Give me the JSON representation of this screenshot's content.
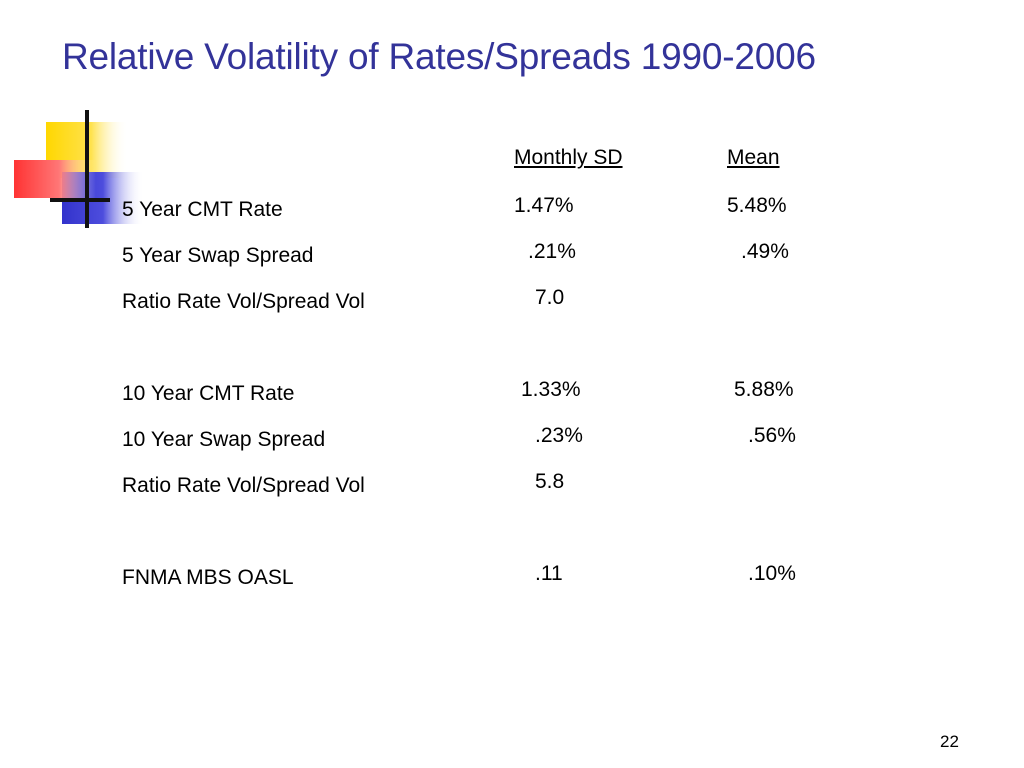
{
  "slide": {
    "title": "Relative Volatility of Rates/Spreads 1990-2006",
    "page_number": "22",
    "colors": {
      "title": "#333399",
      "deco_yellow": "#FFD700",
      "deco_blue": "#3333CC",
      "deco_red": "#FF3333"
    }
  },
  "table": {
    "headers": {
      "sd": "Monthly SD",
      "mean": "Mean"
    },
    "rows": [
      {
        "label": "5 Year CMT Rate",
        "sd": "1.47%",
        "mean": "5.48%"
      },
      {
        "label": "5 Year Swap Spread",
        "sd": ".21%",
        "mean": ".49%"
      },
      {
        "label": "Ratio Rate Vol/Spread Vol",
        "sd": "7.0",
        "mean": ""
      },
      {
        "label": "10 Year CMT Rate",
        "sd": "1.33%",
        "mean": "5.88%"
      },
      {
        "label": "10 Year Swap Spread",
        "sd": ".23%",
        "mean": ".56%"
      },
      {
        "label": "Ratio Rate Vol/Spread Vol",
        "sd": "5.8",
        "mean": ""
      },
      {
        "label": "FNMA MBS OASL",
        "sd": ".11",
        "mean": ".10%"
      }
    ]
  }
}
